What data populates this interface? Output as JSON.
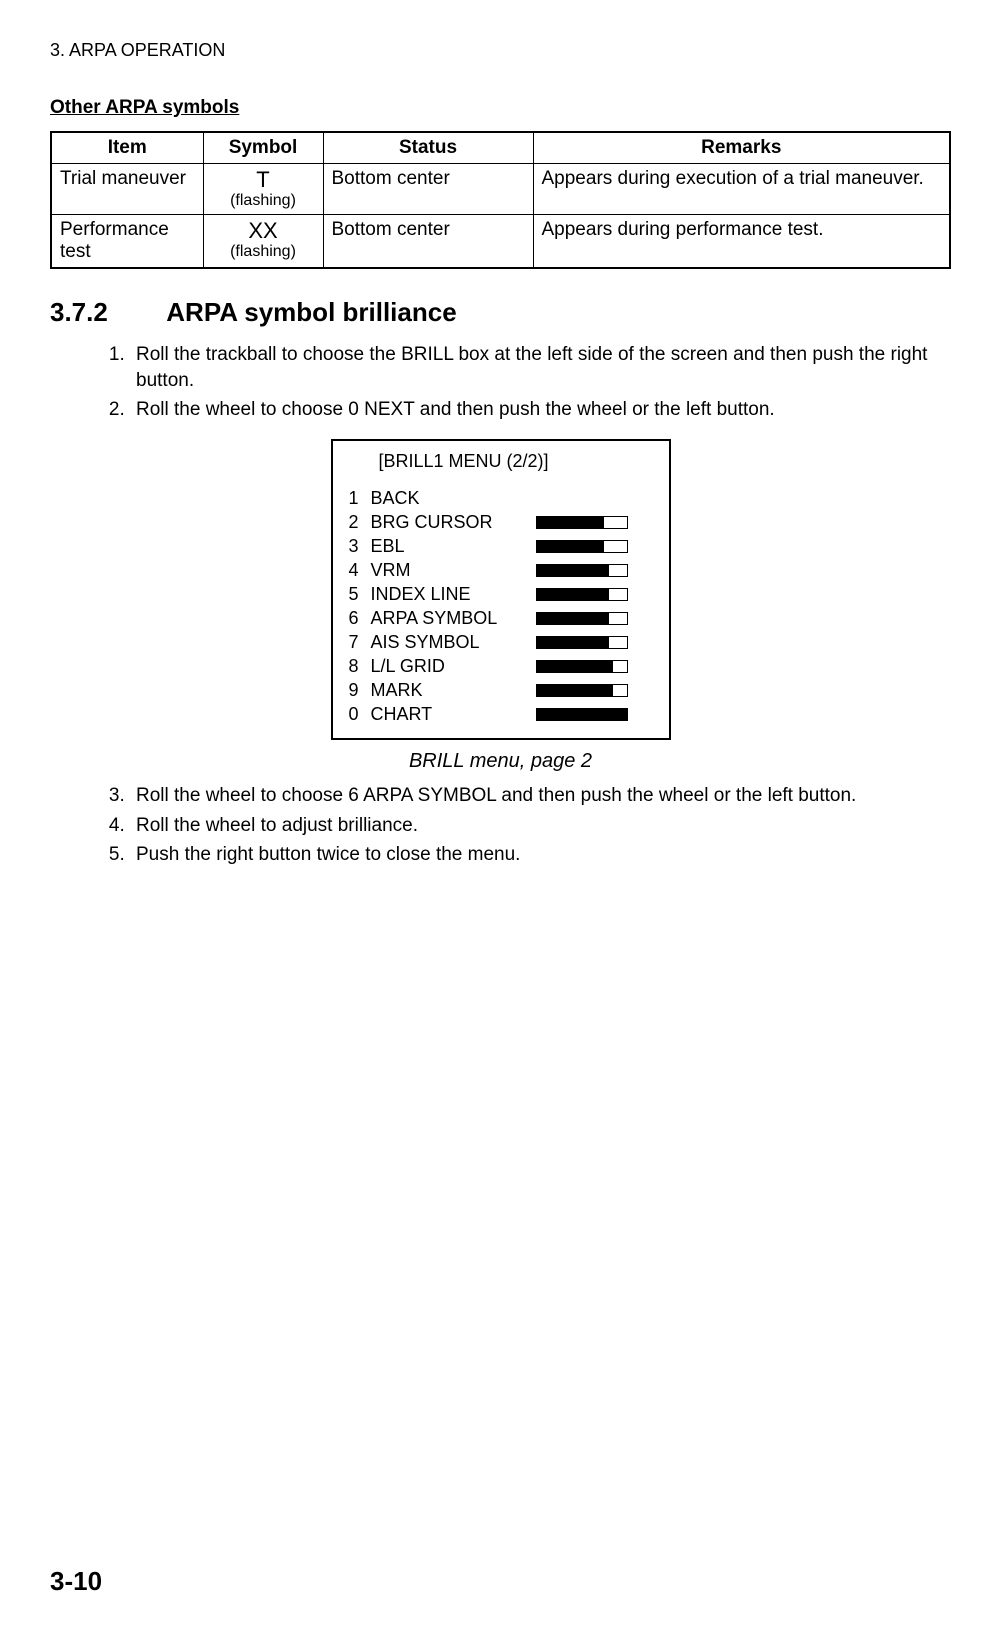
{
  "chapter_header": "3. ARPA OPERATION",
  "subsection_title": "Other ARPA symbols",
  "table": {
    "headers": {
      "item": "Item",
      "symbol": "Symbol",
      "status": "Status",
      "remarks": "Remarks"
    },
    "rows": [
      {
        "item": "Trial maneuver",
        "symbol": "T",
        "symbol_sub": "(flashing)",
        "status": "Bottom center",
        "remarks": "Appears during execution of a trial maneuver."
      },
      {
        "item": "Performance test",
        "symbol": "XX",
        "symbol_sub": "(flashing)",
        "status": "Bottom center",
        "remarks": "Appears during performance test."
      }
    ]
  },
  "heading": {
    "number": "3.7.2",
    "title": "ARPA symbol brilliance"
  },
  "steps_a": [
    "Roll the trackball to choose the BRILL box at the left side of the screen and then push the right button.",
    "Roll the wheel to choose 0 NEXT and then push the wheel or the left button."
  ],
  "menu": {
    "title": "[BRILL1 MENU (2/2)]",
    "items": [
      {
        "n": "1",
        "label": "BACK",
        "bar": null
      },
      {
        "n": "2",
        "label": "BRG CURSOR",
        "bar": 75
      },
      {
        "n": "3",
        "label": "EBL",
        "bar": 75
      },
      {
        "n": "4",
        "label": "VRM",
        "bar": 80
      },
      {
        "n": "5",
        "label": "INDEX LINE",
        "bar": 80
      },
      {
        "n": "6",
        "label": "ARPA SYMBOL",
        "bar": 80
      },
      {
        "n": "7",
        "label": "AIS SYMBOL",
        "bar": 80
      },
      {
        "n": "8",
        "label": "L/L GRID",
        "bar": 85
      },
      {
        "n": "9",
        "label": "MARK",
        "bar": 85
      },
      {
        "n": "0",
        "label": "CHART",
        "bar": 100
      }
    ],
    "caption": "BRILL menu, page 2"
  },
  "steps_b_start": 3,
  "steps_b": [
    "Roll the wheel to choose 6 ARPA SYMBOL and then push the wheel or the left button.",
    "Roll the wheel to adjust brilliance.",
    "Push the right button twice to close the menu."
  ],
  "page_number": "3-10"
}
